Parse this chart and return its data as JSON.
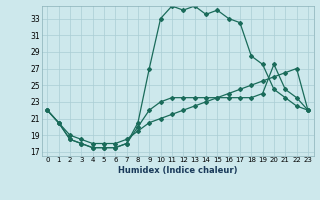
{
  "xlabel": "Humidex (Indice chaleur)",
  "bg_color": "#cde8ec",
  "grid_color": "#aacdd4",
  "line_color": "#1a6b5a",
  "xlim": [
    -0.5,
    23.5
  ],
  "ylim": [
    16.5,
    34.5
  ],
  "xticks": [
    0,
    1,
    2,
    3,
    4,
    5,
    6,
    7,
    8,
    9,
    10,
    11,
    12,
    13,
    14,
    15,
    16,
    17,
    18,
    19,
    20,
    21,
    22,
    23
  ],
  "yticks": [
    17,
    19,
    21,
    23,
    25,
    27,
    29,
    31,
    33
  ],
  "line1_x": [
    0,
    1,
    2,
    3,
    4,
    5,
    6,
    7,
    8,
    9,
    10,
    11,
    12,
    13,
    14,
    15,
    16,
    17,
    18,
    19,
    20,
    21,
    22,
    23
  ],
  "line1_y": [
    22,
    20.5,
    18.5,
    18,
    17.5,
    17.5,
    17.5,
    18,
    20.5,
    27,
    33,
    34.5,
    34,
    34.5,
    33.5,
    34,
    33,
    32.5,
    28.5,
    27.5,
    24.5,
    23.5,
    22.5,
    22.0
  ],
  "line2_x": [
    0,
    1,
    2,
    3,
    4,
    5,
    6,
    7,
    8,
    9,
    10,
    11,
    12,
    13,
    14,
    15,
    16,
    17,
    18,
    19,
    20,
    21,
    22,
    23
  ],
  "line2_y": [
    22,
    20.5,
    18.5,
    18,
    17.5,
    17.5,
    17.5,
    18,
    20.0,
    22.0,
    23.0,
    23.5,
    23.5,
    23.5,
    23.5,
    23.5,
    23.5,
    23.5,
    23.5,
    24.0,
    27.5,
    24.5,
    23.5,
    22.0
  ],
  "line3_x": [
    0,
    1,
    2,
    3,
    4,
    5,
    6,
    7,
    8,
    9,
    10,
    11,
    12,
    13,
    14,
    15,
    16,
    17,
    18,
    19,
    20,
    21,
    22,
    23
  ],
  "line3_y": [
    22,
    20.5,
    19,
    18.5,
    18,
    18,
    18,
    18.5,
    19.5,
    20.5,
    21,
    21.5,
    22,
    22.5,
    23,
    23.5,
    24,
    24.5,
    25,
    25.5,
    26,
    26.5,
    27,
    22.0
  ]
}
